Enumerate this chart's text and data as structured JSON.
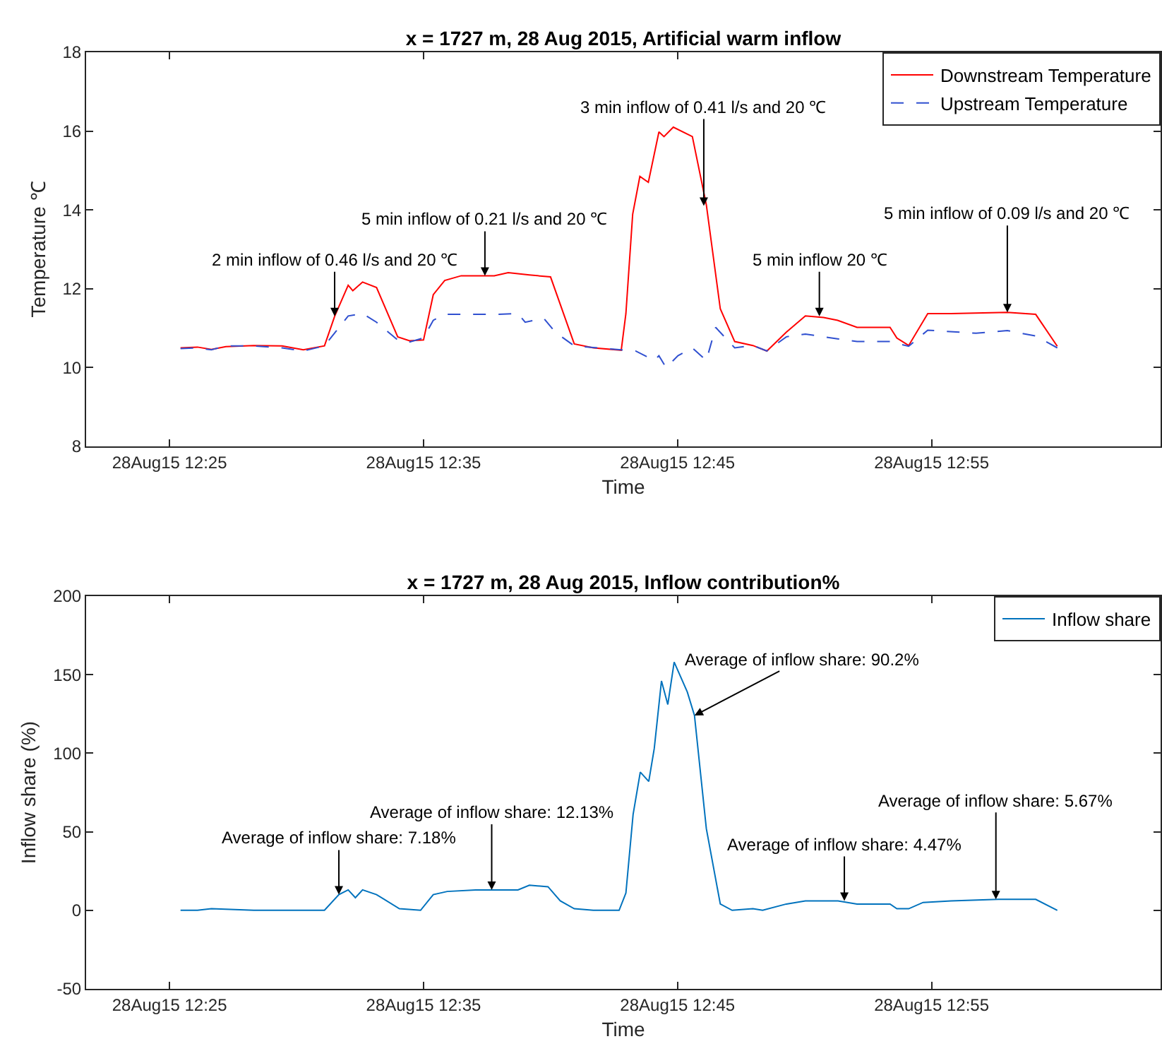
{
  "chart_data": [
    {
      "type": "line",
      "title": "x = 1727 m, 28 Aug 2015, Artificial warm inflow",
      "xlabel": "Time",
      "ylabel": "Temperature ℃",
      "xlim": [
        "2015-08-28T12:21:43",
        "2015-08-28T13:04:01"
      ],
      "xticks": [
        {
          "value": "2015-08-28T12:25",
          "label": "28Aug15 12:25"
        },
        {
          "value": "2015-08-28T12:35",
          "label": "28Aug15 12:35"
        },
        {
          "value": "2015-08-28T12:45",
          "label": "28Aug15 12:45"
        },
        {
          "value": "2015-08-28T12:55",
          "label": "28Aug15 12:55"
        }
      ],
      "ylim": [
        8,
        18
      ],
      "yticks": [
        8,
        10,
        12,
        14,
        16,
        18
      ],
      "legend": "top right",
      "series": [
        {
          "name": "Downstream Temperature",
          "color": "#ff0000",
          "line_style": "solid",
          "x": [
            "2015-08-28T12:25:26",
            "2015-08-28T12:26:06",
            "2015-08-28T12:26:39",
            "2015-08-28T12:27:13",
            "2015-08-28T12:28:19",
            "2015-08-28T12:29:26",
            "2015-08-28T12:30:16",
            "2015-08-28T12:31:06",
            "2015-08-28T12:31:30",
            "2015-08-28T12:32:02",
            "2015-08-28T12:32:13",
            "2015-08-28T12:32:36",
            "2015-08-28T12:33:09",
            "2015-08-28T12:33:59",
            "2015-08-28T12:34:27",
            "2015-08-28T12:35:00",
            "2015-08-28T12:35:23",
            "2015-08-28T12:35:50",
            "2015-08-28T12:36:29",
            "2015-08-28T12:37:47",
            "2015-08-28T12:38:20",
            "2015-08-28T12:39:10",
            "2015-08-28T12:40:00",
            "2015-08-28T12:40:56",
            "2015-08-28T12:41:41",
            "2015-08-28T12:42:47",
            "2015-08-28T12:42:58",
            "2015-08-28T12:43:14",
            "2015-08-28T12:43:31",
            "2015-08-28T12:43:51",
            "2015-08-28T12:44:16",
            "2015-08-28T12:44:28",
            "2015-08-28T12:44:50",
            "2015-08-28T12:45:35",
            "2015-08-28T12:46:08",
            "2015-08-28T12:46:41",
            "2015-08-28T12:47:15",
            "2015-08-28T12:47:58",
            "2015-08-28T12:48:31",
            "2015-08-28T12:49:17",
            "2015-08-28T12:50:02",
            "2015-08-28T12:50:45",
            "2015-08-28T12:51:18",
            "2015-08-28T12:52:04",
            "2015-08-28T12:53:22",
            "2015-08-28T12:53:38",
            "2015-08-28T12:54:06",
            "2015-08-28T12:54:51",
            "2015-08-28T12:55:46",
            "2015-08-28T12:57:59",
            "2015-08-28T12:59:06",
            "2015-08-28T12:59:57"
          ],
          "values": [
            10.5,
            10.52,
            10.46,
            10.53,
            10.56,
            10.55,
            10.45,
            10.55,
            11.3,
            12.09,
            11.95,
            12.17,
            12.03,
            10.78,
            10.68,
            10.7,
            11.85,
            12.21,
            12.33,
            12.33,
            12.41,
            12.35,
            12.3,
            10.6,
            10.5,
            10.44,
            11.37,
            13.89,
            14.85,
            14.7,
            15.98,
            15.86,
            16.1,
            15.86,
            14.13,
            11.49,
            10.66,
            10.56,
            10.42,
            10.9,
            11.31,
            11.27,
            11.2,
            11.02,
            11.02,
            10.75,
            10.56,
            11.37,
            11.37,
            11.4,
            11.35,
            10.54
          ]
        },
        {
          "name": "Upstream Temperature",
          "color": "#3050d0",
          "line_style": "dashed",
          "x": [
            "2015-08-28T12:25:26",
            "2015-08-28T12:26:06",
            "2015-08-28T12:26:39",
            "2015-08-28T12:27:13",
            "2015-08-28T12:28:19",
            "2015-08-28T12:29:26",
            "2015-08-28T12:30:16",
            "2015-08-28T12:31:06",
            "2015-08-28T12:32:02",
            "2015-08-28T12:32:36",
            "2015-08-28T12:33:09",
            "2015-08-28T12:33:59",
            "2015-08-28T12:34:27",
            "2015-08-28T12:35:00",
            "2015-08-28T12:35:23",
            "2015-08-28T12:35:50",
            "2015-08-28T12:37:47",
            "2015-08-28T12:38:43",
            "2015-08-28T12:39:00",
            "2015-08-28T12:39:44",
            "2015-08-28T12:40:11",
            "2015-08-28T12:40:56",
            "2015-08-28T12:42:47",
            "2015-08-28T12:43:21",
            "2015-08-28T12:44:05",
            "2015-08-28T12:44:16",
            "2015-08-28T12:44:33",
            "2015-08-28T12:45:01",
            "2015-08-28T12:45:35",
            "2015-08-28T12:46:08",
            "2015-08-28T12:46:30",
            "2015-08-28T12:47:15",
            "2015-08-28T12:47:58",
            "2015-08-28T12:48:31",
            "2015-08-28T12:49:17",
            "2015-08-28T12:50:02",
            "2015-08-28T12:51:18",
            "2015-08-28T12:52:04",
            "2015-08-28T12:53:22",
            "2015-08-28T12:54:06",
            "2015-08-28T12:54:51",
            "2015-08-28T12:56:45",
            "2015-08-28T12:57:59",
            "2015-08-28T12:59:06",
            "2015-08-28T12:59:57"
          ],
          "values": [
            10.48,
            10.5,
            10.45,
            10.55,
            10.55,
            10.5,
            10.42,
            10.55,
            11.31,
            11.37,
            11.15,
            10.7,
            10.65,
            10.75,
            11.2,
            11.35,
            11.35,
            11.37,
            11.15,
            11.25,
            10.9,
            10.55,
            10.45,
            10.42,
            10.18,
            10.3,
            10.0,
            10.3,
            10.5,
            10.18,
            11.02,
            10.5,
            10.56,
            10.42,
            10.78,
            10.85,
            10.73,
            10.66,
            10.66,
            10.54,
            10.95,
            10.87,
            10.94,
            10.8,
            10.5
          ]
        }
      ],
      "annotations": [
        {
          "text": "2 min inflow of 0.46 l/s and 20 ℃",
          "x": "2015-08-28T12:31:30",
          "y": 11.3
        },
        {
          "text": "5 min inflow of 0.21 l/s and 20 ℃",
          "x": "2015-08-28T12:37:25",
          "y": 12.33
        },
        {
          "text": "3 min inflow of 0.41 l/s and 20 ℃",
          "x": "2015-08-28T12:46:02",
          "y": 14.1
        },
        {
          "text": "5 min inflow 20 ℃",
          "x": "2015-08-28T12:50:35",
          "y": 11.3
        },
        {
          "text": "5 min inflow of 0.09 l/s and 20 ℃",
          "x": "2015-08-28T12:57:59",
          "y": 11.4
        }
      ]
    },
    {
      "type": "line",
      "title": "x = 1727 m, 28 Aug 2015, Inflow contribution%",
      "xlabel": "Time",
      "ylabel": "Inflow share (%)",
      "xlim": [
        "2015-08-28T12:21:43",
        "2015-08-28T13:04:01"
      ],
      "xticks": [
        {
          "value": "2015-08-28T12:25",
          "label": "28Aug15 12:25"
        },
        {
          "value": "2015-08-28T12:35",
          "label": "28Aug15 12:35"
        },
        {
          "value": "2015-08-28T12:45",
          "label": "28Aug15 12:45"
        },
        {
          "value": "2015-08-28T12:55",
          "label": "28Aug15 12:55"
        }
      ],
      "ylim": [
        -50,
        200
      ],
      "yticks": [
        -50,
        0,
        50,
        100,
        150,
        200
      ],
      "legend": "top right",
      "series": [
        {
          "name": "Inflow share",
          "color": "#0072bd",
          "x": [
            "2015-08-28T12:25:26",
            "2015-08-28T12:26:06",
            "2015-08-28T12:26:39",
            "2015-08-28T12:28:19",
            "2015-08-28T12:29:26",
            "2015-08-28T12:31:06",
            "2015-08-28T12:31:40",
            "2015-08-28T12:32:02",
            "2015-08-28T12:32:19",
            "2015-08-28T12:32:36",
            "2015-08-28T12:33:09",
            "2015-08-28T12:34:03",
            "2015-08-28T12:34:53",
            "2015-08-28T12:35:23",
            "2015-08-28T12:35:56",
            "2015-08-28T12:37:03",
            "2015-08-28T12:37:47",
            "2015-08-28T12:38:43",
            "2015-08-28T12:39:10",
            "2015-08-28T12:39:54",
            "2015-08-28T12:40:23",
            "2015-08-28T12:40:56",
            "2015-08-28T12:41:41",
            "2015-08-28T12:42:42",
            "2015-08-28T12:42:58",
            "2015-08-28T12:43:15",
            "2015-08-28T12:43:32",
            "2015-08-28T12:43:52",
            "2015-08-28T12:44:05",
            "2015-08-28T12:44:22",
            "2015-08-28T12:44:37",
            "2015-08-28T12:44:52",
            "2015-08-28T12:45:23",
            "2015-08-28T12:45:40",
            "2015-08-28T12:46:08",
            "2015-08-28T12:46:41",
            "2015-08-28T12:47:09",
            "2015-08-28T12:47:58",
            "2015-08-28T12:48:21",
            "2015-08-28T12:49:17",
            "2015-08-28T12:50:02",
            "2015-08-28T12:51:19",
            "2015-08-28T12:52:04",
            "2015-08-28T12:53:22",
            "2015-08-28T12:53:38",
            "2015-08-28T12:54:06",
            "2015-08-28T12:54:40",
            "2015-08-28T12:55:46",
            "2015-08-28T12:57:38",
            "2015-08-28T12:59:06",
            "2015-08-28T12:59:57"
          ],
          "values": [
            0,
            0,
            1,
            0,
            0,
            0,
            10,
            13,
            8,
            13,
            10,
            1,
            0,
            10,
            12,
            13,
            13,
            13,
            16,
            15,
            6,
            1,
            0,
            0,
            11,
            61,
            88,
            82,
            103,
            146,
            131,
            158,
            139,
            124,
            52,
            4,
            0,
            1,
            0,
            4,
            6,
            6,
            4,
            4,
            1,
            1,
            5,
            6,
            7,
            7,
            0
          ]
        }
      ],
      "annotations": [
        {
          "text": "Average of inflow share: 7.18%",
          "x": "2015-08-28T12:31:40",
          "y": 10
        },
        {
          "text": "Average of inflow share: 12.13%",
          "x": "2015-08-28T12:37:41",
          "y": 13
        },
        {
          "text": "Average of inflow share: 90.2%",
          "x": "2015-08-28T12:45:40",
          "y": 124
        },
        {
          "text": "Average of inflow share: 4.47%",
          "x": "2015-08-28T12:51:34",
          "y": 6
        },
        {
          "text": "Average of inflow share: 5.67%",
          "x": "2015-08-28T12:57:32",
          "y": 7
        }
      ]
    }
  ]
}
